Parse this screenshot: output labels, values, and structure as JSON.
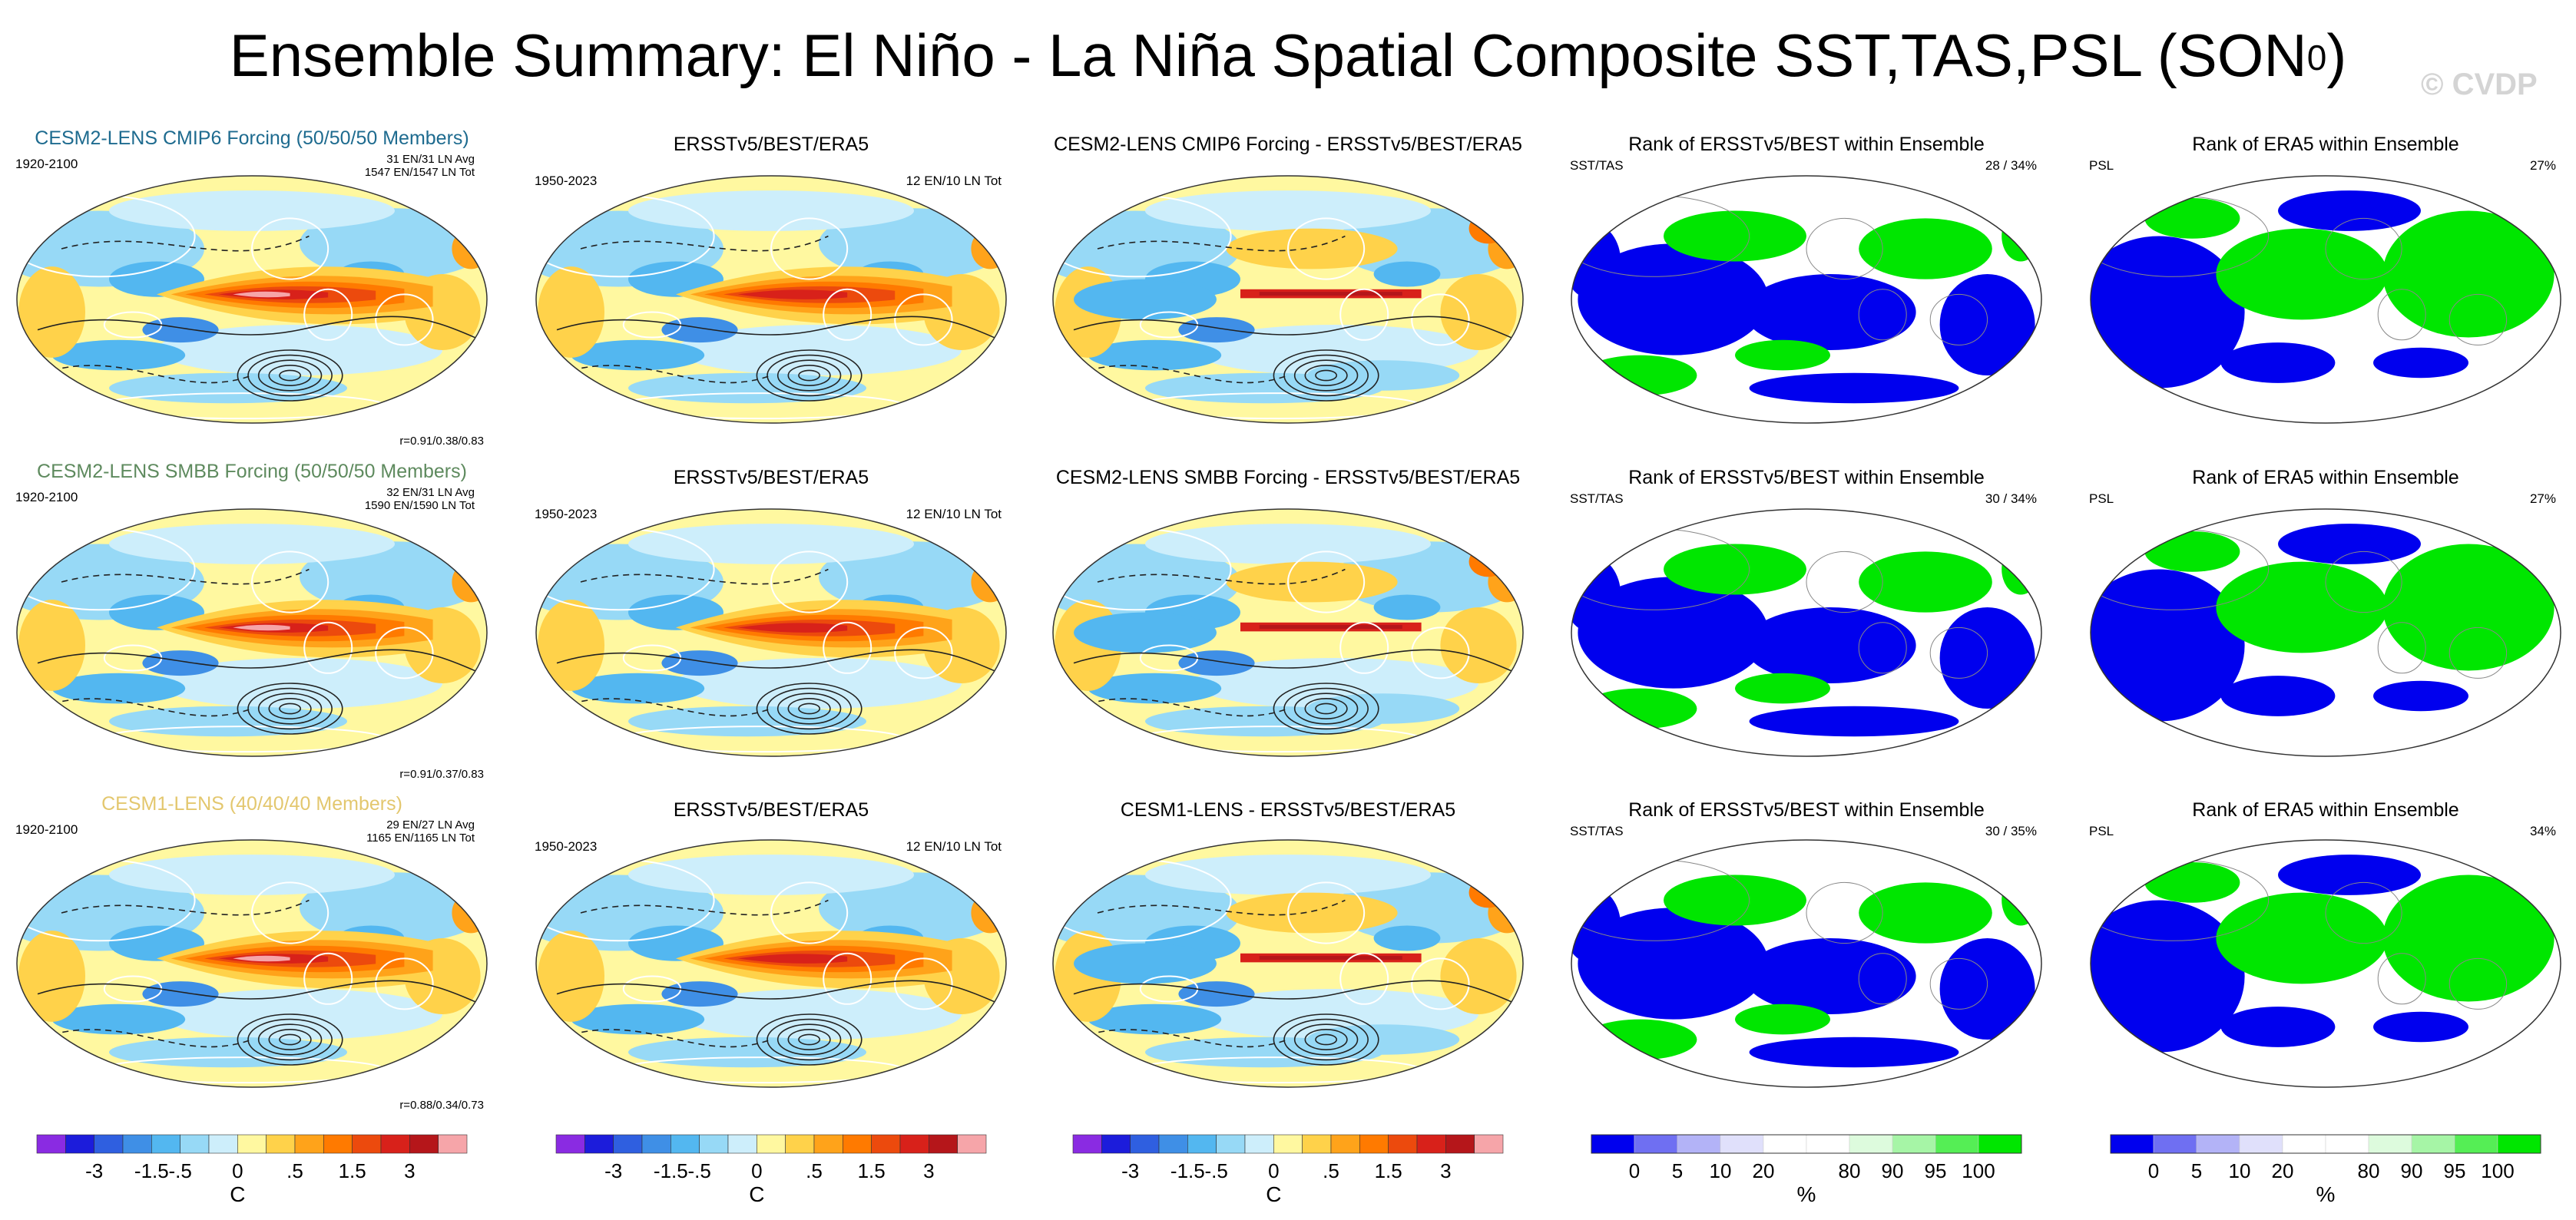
{
  "title": {
    "main": "Ensemble Summary: El Niño - La Niña Spatial Composite SST,TAS,PSL (SON",
    "superscript": "0",
    "close": ")"
  },
  "watermark": "© CVDP",
  "colors": {
    "title_cmip6": "#1e6b8f",
    "title_smbb": "#5e8a5e",
    "title_lens1": "#e3c76e",
    "anomaly_scale": [
      "#8a2be2",
      "#1c1cdb",
      "#2f5fe0",
      "#3f8fe6",
      "#53b7f0",
      "#97d9f6",
      "#cdeefb",
      "#fff8a0",
      "#ffd24a",
      "#ffa31a",
      "#ff7a00",
      "#ec4a0d",
      "#d8211a",
      "#b5161a",
      "#f6a5a9"
    ],
    "rank_scale": [
      "#0000ee",
      "#6f6ff2",
      "#b3b3f7",
      "#e0e0fb",
      "#ffffff",
      "#ffffff",
      "#ddfbdd",
      "#a6f5a6",
      "#55ee55",
      "#00e600"
    ],
    "rank_low": "#0000ee",
    "rank_mid": "#ffffff",
    "rank_high": "#00e600"
  },
  "rows": [
    {
      "model_title": "CESM2-LENS CMIP6 Forcing (50/50/50 Members)",
      "model_period": "1920-2100",
      "model_stats": [
        "31 EN/31 LN Avg",
        "1547 EN/1547 LN Tot"
      ],
      "model_r": "r=0.91/0.38/0.83",
      "obs_title": "ERSSTv5/BEST/ERA5",
      "obs_period": "1950-2023",
      "obs_stats": "12 EN/10 LN Tot",
      "diff_title": "CESM2-LENS CMIP6 Forcing - ERSSTv5/BEST/ERA5",
      "rank1_title": "Rank of ERSSTv5/BEST within Ensemble",
      "rank1_label": "SST/TAS",
      "rank1_value": "28 /  34%",
      "rank2_title": "Rank of ERA5 within Ensemble",
      "rank2_label": "PSL",
      "rank2_value": "27%"
    },
    {
      "model_title": "CESM2-LENS SMBB Forcing (50/50/50 Members)",
      "model_period": "1920-2100",
      "model_stats": [
        "32 EN/31 LN Avg",
        "1590 EN/1590 LN Tot"
      ],
      "model_r": "r=0.91/0.37/0.83",
      "obs_title": "ERSSTv5/BEST/ERA5",
      "obs_period": "1950-2023",
      "obs_stats": "12 EN/10 LN Tot",
      "diff_title": "CESM2-LENS SMBB Forcing - ERSSTv5/BEST/ERA5",
      "rank1_title": "Rank of ERSSTv5/BEST within Ensemble",
      "rank1_label": "SST/TAS",
      "rank1_value": "30 /  34%",
      "rank2_title": "Rank of ERA5 within Ensemble",
      "rank2_label": "PSL",
      "rank2_value": "27%"
    },
    {
      "model_title": "CESM1-LENS (40/40/40 Members)",
      "model_period": "1920-2100",
      "model_stats": [
        "29 EN/27 LN Avg",
        "1165 EN/1165 LN Tot"
      ],
      "model_r": "r=0.88/0.34/0.73",
      "obs_title": "ERSSTv5/BEST/ERA5",
      "obs_period": "1950-2023",
      "obs_stats": "12 EN/10 LN Tot",
      "diff_title": "CESM1-LENS - ERSSTv5/BEST/ERA5",
      "rank1_title": "Rank of ERSSTv5/BEST within Ensemble",
      "rank1_label": "SST/TAS",
      "rank1_value": "30 /  35%",
      "rank2_title": "Rank of ERA5 within Ensemble",
      "rank2_label": "PSL",
      "rank2_value": "34%"
    }
  ],
  "colorbars": {
    "anomaly_ticks": [
      "-3",
      "-1.5",
      "-.5",
      "0",
      ".5",
      "1.5",
      "3"
    ],
    "anomaly_unit": "C",
    "rank_ticks": [
      "0",
      "5",
      "10",
      "20",
      "80",
      "90",
      "95",
      "100"
    ],
    "rank_unit": "%"
  },
  "chart_data": [
    {
      "type": "heatmap",
      "title": "El Niño - La Niña Spatial Composite SST,TAS,PSL (SON0)",
      "panels": [
        "model composite",
        "observed composite",
        "model - observed",
        "rank SST/TAS",
        "rank PSL"
      ],
      "anomaly_levels_C": [
        -4,
        -3,
        -2,
        -1.5,
        -1,
        -0.5,
        -0.25,
        0,
        0.25,
        0.5,
        1,
        1.5,
        2,
        3,
        4
      ],
      "rank_levels_pct": [
        0,
        5,
        10,
        20,
        80,
        90,
        95,
        100
      ],
      "pattern_correlations": [
        {
          "model": "CESM2-LENS CMIP6 Forcing",
          "r": [
            0.91,
            0.38,
            0.83
          ]
        },
        {
          "model": "CESM2-LENS SMBB Forcing",
          "r": [
            0.91,
            0.37,
            0.83
          ]
        },
        {
          "model": "CESM1-LENS",
          "r": [
            0.88,
            0.34,
            0.73
          ]
        }
      ],
      "rank_sst_tas_pct": [
        [
          28,
          34
        ],
        [
          30,
          34
        ],
        [
          30,
          35
        ]
      ],
      "rank_psl_pct": [
        27,
        27,
        34
      ]
    }
  ]
}
